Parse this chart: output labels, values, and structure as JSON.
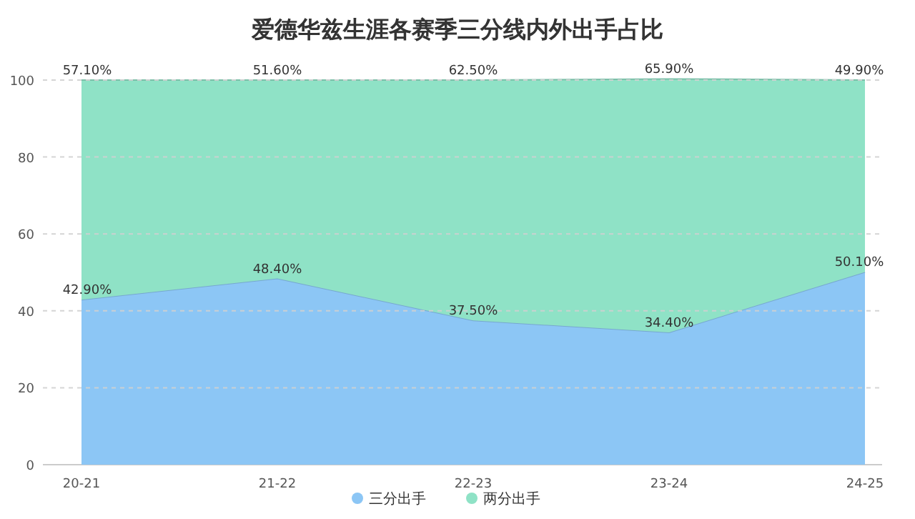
{
  "chart_data": {
    "type": "area",
    "stacked": true,
    "title": "爱德华兹生涯各赛季三分线内外出手占比",
    "categories": [
      "20-21",
      "21-22",
      "22-23",
      "23-24",
      "24-25"
    ],
    "series": [
      {
        "name": "三分出手",
        "color": "#8cc6f5",
        "values": [
          42.9,
          48.4,
          37.5,
          34.4,
          50.1
        ],
        "value_labels": [
          "42.90%",
          "48.40%",
          "37.50%",
          "34.40%",
          "50.10%"
        ]
      },
      {
        "name": "两分出手",
        "color": "#8fe2c6",
        "values": [
          57.1,
          51.6,
          62.5,
          65.9,
          49.9
        ],
        "value_labels": [
          "57.10%",
          "51.60%",
          "62.50%",
          "65.90%",
          "49.90%"
        ]
      }
    ],
    "ylim": [
      0,
      100
    ],
    "yticks": [
      0,
      20,
      40,
      60,
      80,
      100
    ],
    "grid": "y",
    "legend": "bottom"
  }
}
